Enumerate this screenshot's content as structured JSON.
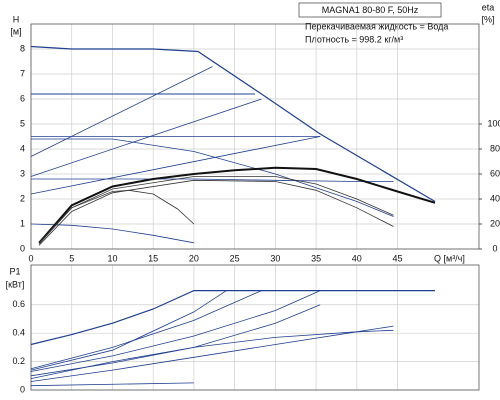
{
  "chart_data": [
    {
      "type": "line",
      "title": "MAGNA1 80-80 F, 50Hz",
      "annotations": [
        "Перекачиваемая жидкость = Вода",
        "Плотность = 998.2 кг/м³"
      ],
      "ylabel": [
        "H",
        "[м]"
      ],
      "y2label": [
        "eta",
        "[%]"
      ],
      "xlabel": "Q [м³/ч]",
      "xlim": [
        0,
        55
      ],
      "xticks": [
        0,
        5,
        10,
        15,
        20,
        25,
        30,
        35,
        40,
        45
      ],
      "ylim": [
        0,
        9
      ],
      "yticks": [
        0,
        1,
        2,
        3,
        4,
        5,
        6,
        7,
        8
      ],
      "y2lim": [
        0,
        180
      ],
      "y2ticks": [
        0,
        20,
        40,
        60,
        80,
        100
      ],
      "grid": true,
      "show_xtick_labels": true,
      "series": [
        {
          "color": "#1f3f8f",
          "width": 1.2,
          "x": [
            0,
            5,
            10,
            15,
            20.5,
            28.3,
            35.5,
            49.6
          ],
          "values": [
            8.1,
            8.0,
            8.0,
            8.0,
            7.9,
            6.2,
            4.6,
            1.9
          ]
        },
        {
          "color": "#1f3f8f",
          "width": 1,
          "x": [
            0,
            27.5
          ],
          "values": [
            6.2,
            6.2
          ]
        },
        {
          "color": "#1f3f8f",
          "width": 0.8,
          "x": [
            0,
            35.5
          ],
          "values": [
            4.5,
            4.5
          ]
        },
        {
          "color": "#1f3f8f",
          "width": 0.8,
          "x": [
            0,
            22.3
          ],
          "values": [
            3.7,
            7.3
          ]
        },
        {
          "color": "#1f3f8f",
          "width": 0.8,
          "x": [
            0,
            28.3
          ],
          "values": [
            2.9,
            6.0
          ]
        },
        {
          "color": "#1f3f8f",
          "width": 0.8,
          "x": [
            0,
            35.5
          ],
          "values": [
            2.2,
            4.5
          ]
        },
        {
          "color": "#1f3f8f",
          "width": 0.8,
          "x": [
            0,
            10,
            20,
            30,
            40,
            44.5
          ],
          "values": [
            4.4,
            4.4,
            3.9,
            3.0,
            1.9,
            1.3
          ]
        },
        {
          "color": "#1f3f8f",
          "width": 0.8,
          "x": [
            0,
            10,
            20,
            30,
            40,
            44.5
          ],
          "values": [
            2.8,
            2.8,
            2.8,
            2.75,
            2.7,
            2.7
          ]
        },
        {
          "color": "#1f3f8f",
          "width": 0.8,
          "x": [
            0,
            5,
            10,
            15,
            20
          ],
          "values": [
            1.0,
            0.95,
            0.8,
            0.55,
            0.25
          ]
        },
        {
          "axis": "y2",
          "color": "#111111",
          "width": 2,
          "x": [
            1,
            5,
            10,
            15,
            20,
            25,
            30,
            35,
            40,
            45,
            49.6
          ],
          "values": [
            5,
            35,
            50,
            56,
            60,
            63,
            65,
            64,
            56,
            46,
            37
          ]
        },
        {
          "axis": "y2",
          "color": "#333333",
          "width": 0.8,
          "x": [
            1,
            5,
            10,
            20,
            30,
            35,
            40,
            44.5
          ],
          "values": [
            4,
            33,
            48,
            58,
            58,
            52,
            40,
            27
          ]
        },
        {
          "axis": "y2",
          "color": "#333333",
          "width": 0.8,
          "x": [
            1,
            5,
            10,
            20,
            30,
            35,
            40,
            44.5
          ],
          "values": [
            3,
            30,
            45,
            55,
            54,
            47,
            33,
            18
          ]
        },
        {
          "axis": "y2",
          "color": "#333333",
          "width": 0.8,
          "x": [
            1,
            5,
            10,
            12,
            15,
            18,
            20
          ],
          "values": [
            5,
            33,
            46,
            47,
            44,
            32,
            20
          ]
        }
      ]
    },
    {
      "type": "line",
      "ylabel": [
        "P1",
        "[кВт]"
      ],
      "xlim": [
        0,
        55
      ],
      "xticks": [
        0,
        5,
        10,
        15,
        20,
        25,
        30,
        35,
        40,
        45
      ],
      "ylim": [
        0,
        0.88
      ],
      "yticks": [
        0,
        0.2,
        0.4,
        0.6
      ],
      "grid": true,
      "show_xtick_labels": false,
      "series": [
        {
          "color": "#1f3f8f",
          "width": 1.2,
          "x": [
            0,
            5,
            10,
            15,
            20,
            49.6
          ],
          "values": [
            0.32,
            0.39,
            0.47,
            0.57,
            0.7,
            0.7
          ]
        },
        {
          "color": "#1f3f8f",
          "width": 0.8,
          "x": [
            0,
            10,
            20,
            24
          ],
          "values": [
            0.14,
            0.28,
            0.55,
            0.7
          ]
        },
        {
          "color": "#1f3f8f",
          "width": 0.8,
          "x": [
            0,
            10,
            20,
            28.3
          ],
          "values": [
            0.15,
            0.3,
            0.49,
            0.7
          ]
        },
        {
          "color": "#1f3f8f",
          "width": 0.8,
          "x": [
            0,
            10,
            20,
            30,
            35.5
          ],
          "values": [
            0.13,
            0.24,
            0.38,
            0.56,
            0.7
          ]
        },
        {
          "color": "#1f3f8f",
          "width": 0.8,
          "x": [
            0,
            10,
            20,
            30,
            35.5
          ],
          "values": [
            0.1,
            0.19,
            0.3,
            0.47,
            0.6
          ]
        },
        {
          "color": "#1f3f8f",
          "width": 0.8,
          "x": [
            0,
            10,
            20,
            30,
            40,
            44.5
          ],
          "values": [
            0.08,
            0.2,
            0.3,
            0.37,
            0.41,
            0.42
          ]
        },
        {
          "color": "#1f3f8f",
          "width": 0.8,
          "x": [
            0,
            10,
            20,
            30,
            40,
            44.5
          ],
          "values": [
            0.06,
            0.14,
            0.23,
            0.32,
            0.41,
            0.45
          ]
        },
        {
          "color": "#1f3f8f",
          "width": 0.8,
          "x": [
            0,
            20
          ],
          "values": [
            0.03,
            0.05
          ]
        }
      ]
    }
  ]
}
